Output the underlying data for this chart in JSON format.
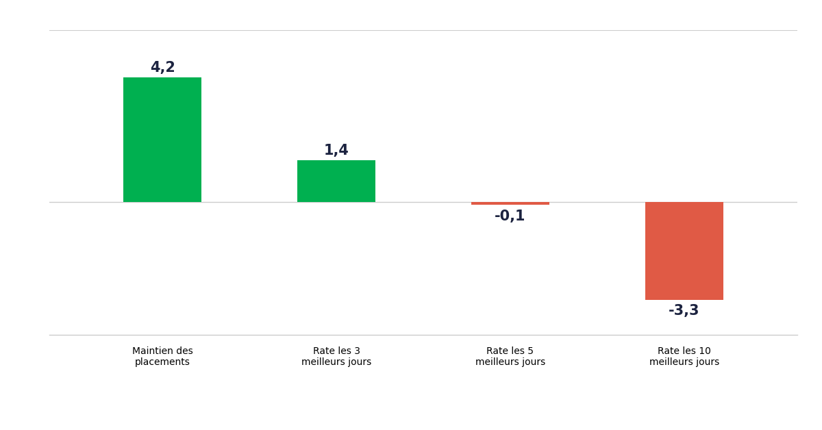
{
  "categories": [
    "Maintien des\nplacements",
    "Rate les 3\nmeilleurs jours",
    "Rate les 5\nmeilleurs jours",
    "Rate les 10\nmeilleurs jours"
  ],
  "values": [
    4.2,
    1.4,
    -0.1,
    -3.3
  ],
  "bar_colors": [
    "#00b050",
    "#00b050",
    "#e05a45",
    "#e05a45"
  ],
  "label_values": [
    "4,2",
    "1,4",
    "-0,1",
    "-3,3"
  ],
  "background_color": "#ffffff",
  "axis_line_color": "#cccccc",
  "label_color": "#1c2340",
  "label_fontsize": 15,
  "tick_label_fontsize": 13,
  "bar_width": 0.45,
  "ylim": [
    -4.8,
    5.8
  ],
  "figsize": [
    12.0,
    6.28
  ],
  "dpi": 100
}
